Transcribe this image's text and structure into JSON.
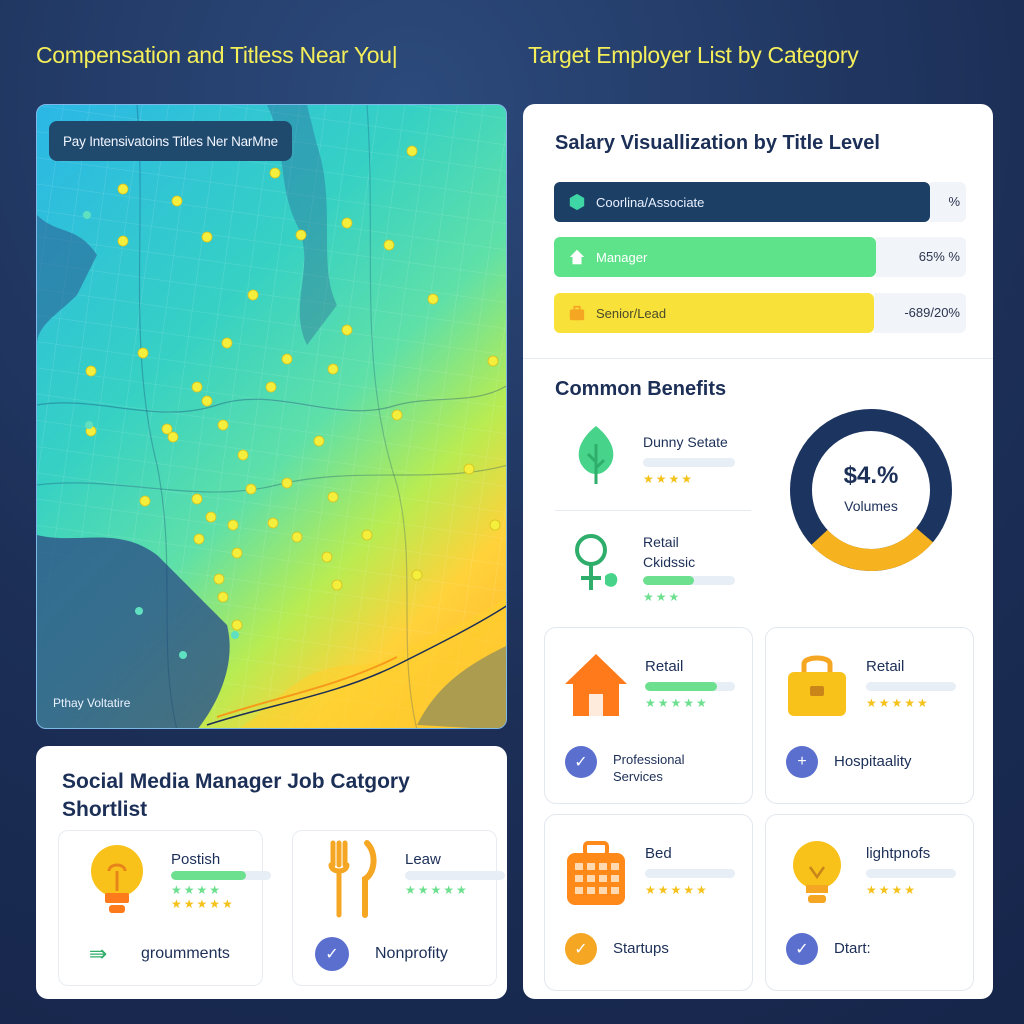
{
  "headings": {
    "left": "Compensation and Titless Near You|",
    "right": "Target Employer List by Category"
  },
  "map": {
    "badge": "Pay Intensivatoins Titles Ner NarMne",
    "legend_label": "Pthay Voltatire",
    "pin_color": "#f4ee3c"
  },
  "salary": {
    "title": "Salary Visuallization by Title Level",
    "rows": [
      {
        "label": "Coorlina/Associate",
        "value_text": "%",
        "color": "#1c3f66",
        "icon": "hexagon-icon"
      },
      {
        "label": "Manager",
        "value_text": "65% %",
        "color": "#5fe38a",
        "icon": "home-icon"
      },
      {
        "label": "Senior/Lead",
        "value_text": "-689/20%",
        "color": "#f8e23a",
        "icon": "briefcase-icon"
      }
    ]
  },
  "benefits": {
    "title": "Common Benefits",
    "items": [
      {
        "name": "Dunny Setate",
        "stars": "★★★★",
        "rating": 0.0,
        "icon": "leaf-icon"
      },
      {
        "name1": "Retail",
        "name2": "Ckidssic",
        "stars": "★★★",
        "rating": 0.55,
        "icon": "female-symbol-icon"
      }
    ],
    "donut": {
      "value": "$4.%",
      "label": "Volumes",
      "primary_color": "#1c3460",
      "accent_color": "#f7b21f",
      "accent_fraction": 0.27
    }
  },
  "categories": [
    {
      "title": "Retail",
      "stars": "★★★★★",
      "rating": 0.8,
      "icon": "house-icon",
      "sub": "Professional\nServices",
      "sub1": "Professional",
      "sub2": "Services",
      "check_color": "#5b6fcf",
      "check_symbol": "✓"
    },
    {
      "title": "Retail",
      "stars": "★★★★★",
      "rating": 0.0,
      "icon": "shopping-bag-icon",
      "sub": "Hospitaality",
      "check_color": "#5b6fcf",
      "check_symbol": "+"
    },
    {
      "title": "Bed",
      "stars": "★★★★★",
      "rating": 0.0,
      "icon": "suitcase-icon",
      "sub": "Startups",
      "check_color": "#f5a623",
      "check_symbol": "✓"
    },
    {
      "title": "lightpnofs",
      "stars": "★★★★",
      "rating": 0.0,
      "icon": "lightbulb-icon",
      "sub": "Dtart:",
      "check_color": "#5b6fcf",
      "check_symbol": "✓"
    }
  ],
  "shortlist": {
    "title": "Social Media Manager Job Catgory Shortlist",
    "cards": [
      {
        "title": "Postish",
        "stars1": "★★★★",
        "stars2": "★★★★★",
        "rating": 0.75,
        "icon": "lightbulb-icon",
        "sub": "groumments",
        "check_symbol": "⇛"
      },
      {
        "title": "Leaw",
        "stars1": "★★★★★",
        "stars2": "",
        "rating": 0.0,
        "icon": "fork-knife-icon",
        "sub": "Nonprofity",
        "check_symbol": "✓"
      }
    ]
  }
}
